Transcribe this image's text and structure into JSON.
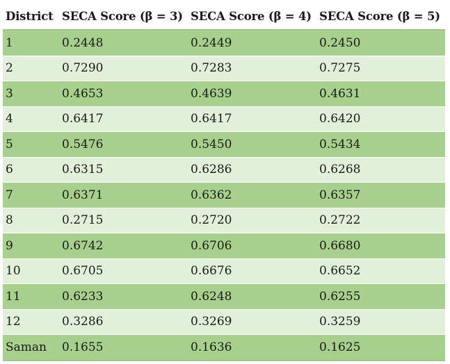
{
  "table": {
    "headers": [
      "District",
      "SECA Score (β = 3)",
      "SECA Score (β = 4)",
      "SECA Score (β = 5)"
    ],
    "rows": [
      [
        "1",
        "0.2448",
        "0.2449",
        "0.2450"
      ],
      [
        "2",
        "0.7290",
        "0.7283",
        "0.7275"
      ],
      [
        "3",
        "0.4653",
        "0.4639",
        "0.4631"
      ],
      [
        "4",
        "0.6417",
        "0.6417",
        "0.6420"
      ],
      [
        "5",
        "0.5476",
        "0.5450",
        "0.5434"
      ],
      [
        "6",
        "0.6315",
        "0.6286",
        "0.6268"
      ],
      [
        "7",
        "0.6371",
        "0.6362",
        "0.6357"
      ],
      [
        "8",
        "0.2715",
        "0.2720",
        "0.2722"
      ],
      [
        "9",
        "0.6742",
        "0.6706",
        "0.6680"
      ],
      [
        "10",
        "0.6705",
        "0.6676",
        "0.6652"
      ],
      [
        "11",
        "0.6233",
        "0.6248",
        "0.6255"
      ],
      [
        "12",
        "0.3286",
        "0.3269",
        "0.3259"
      ],
      [
        "Saman",
        "0.1655",
        "0.1636",
        "0.1625"
      ]
    ],
    "colors": {
      "row_dark": "#a8d08d",
      "row_light": "#e2efd9"
    }
  }
}
